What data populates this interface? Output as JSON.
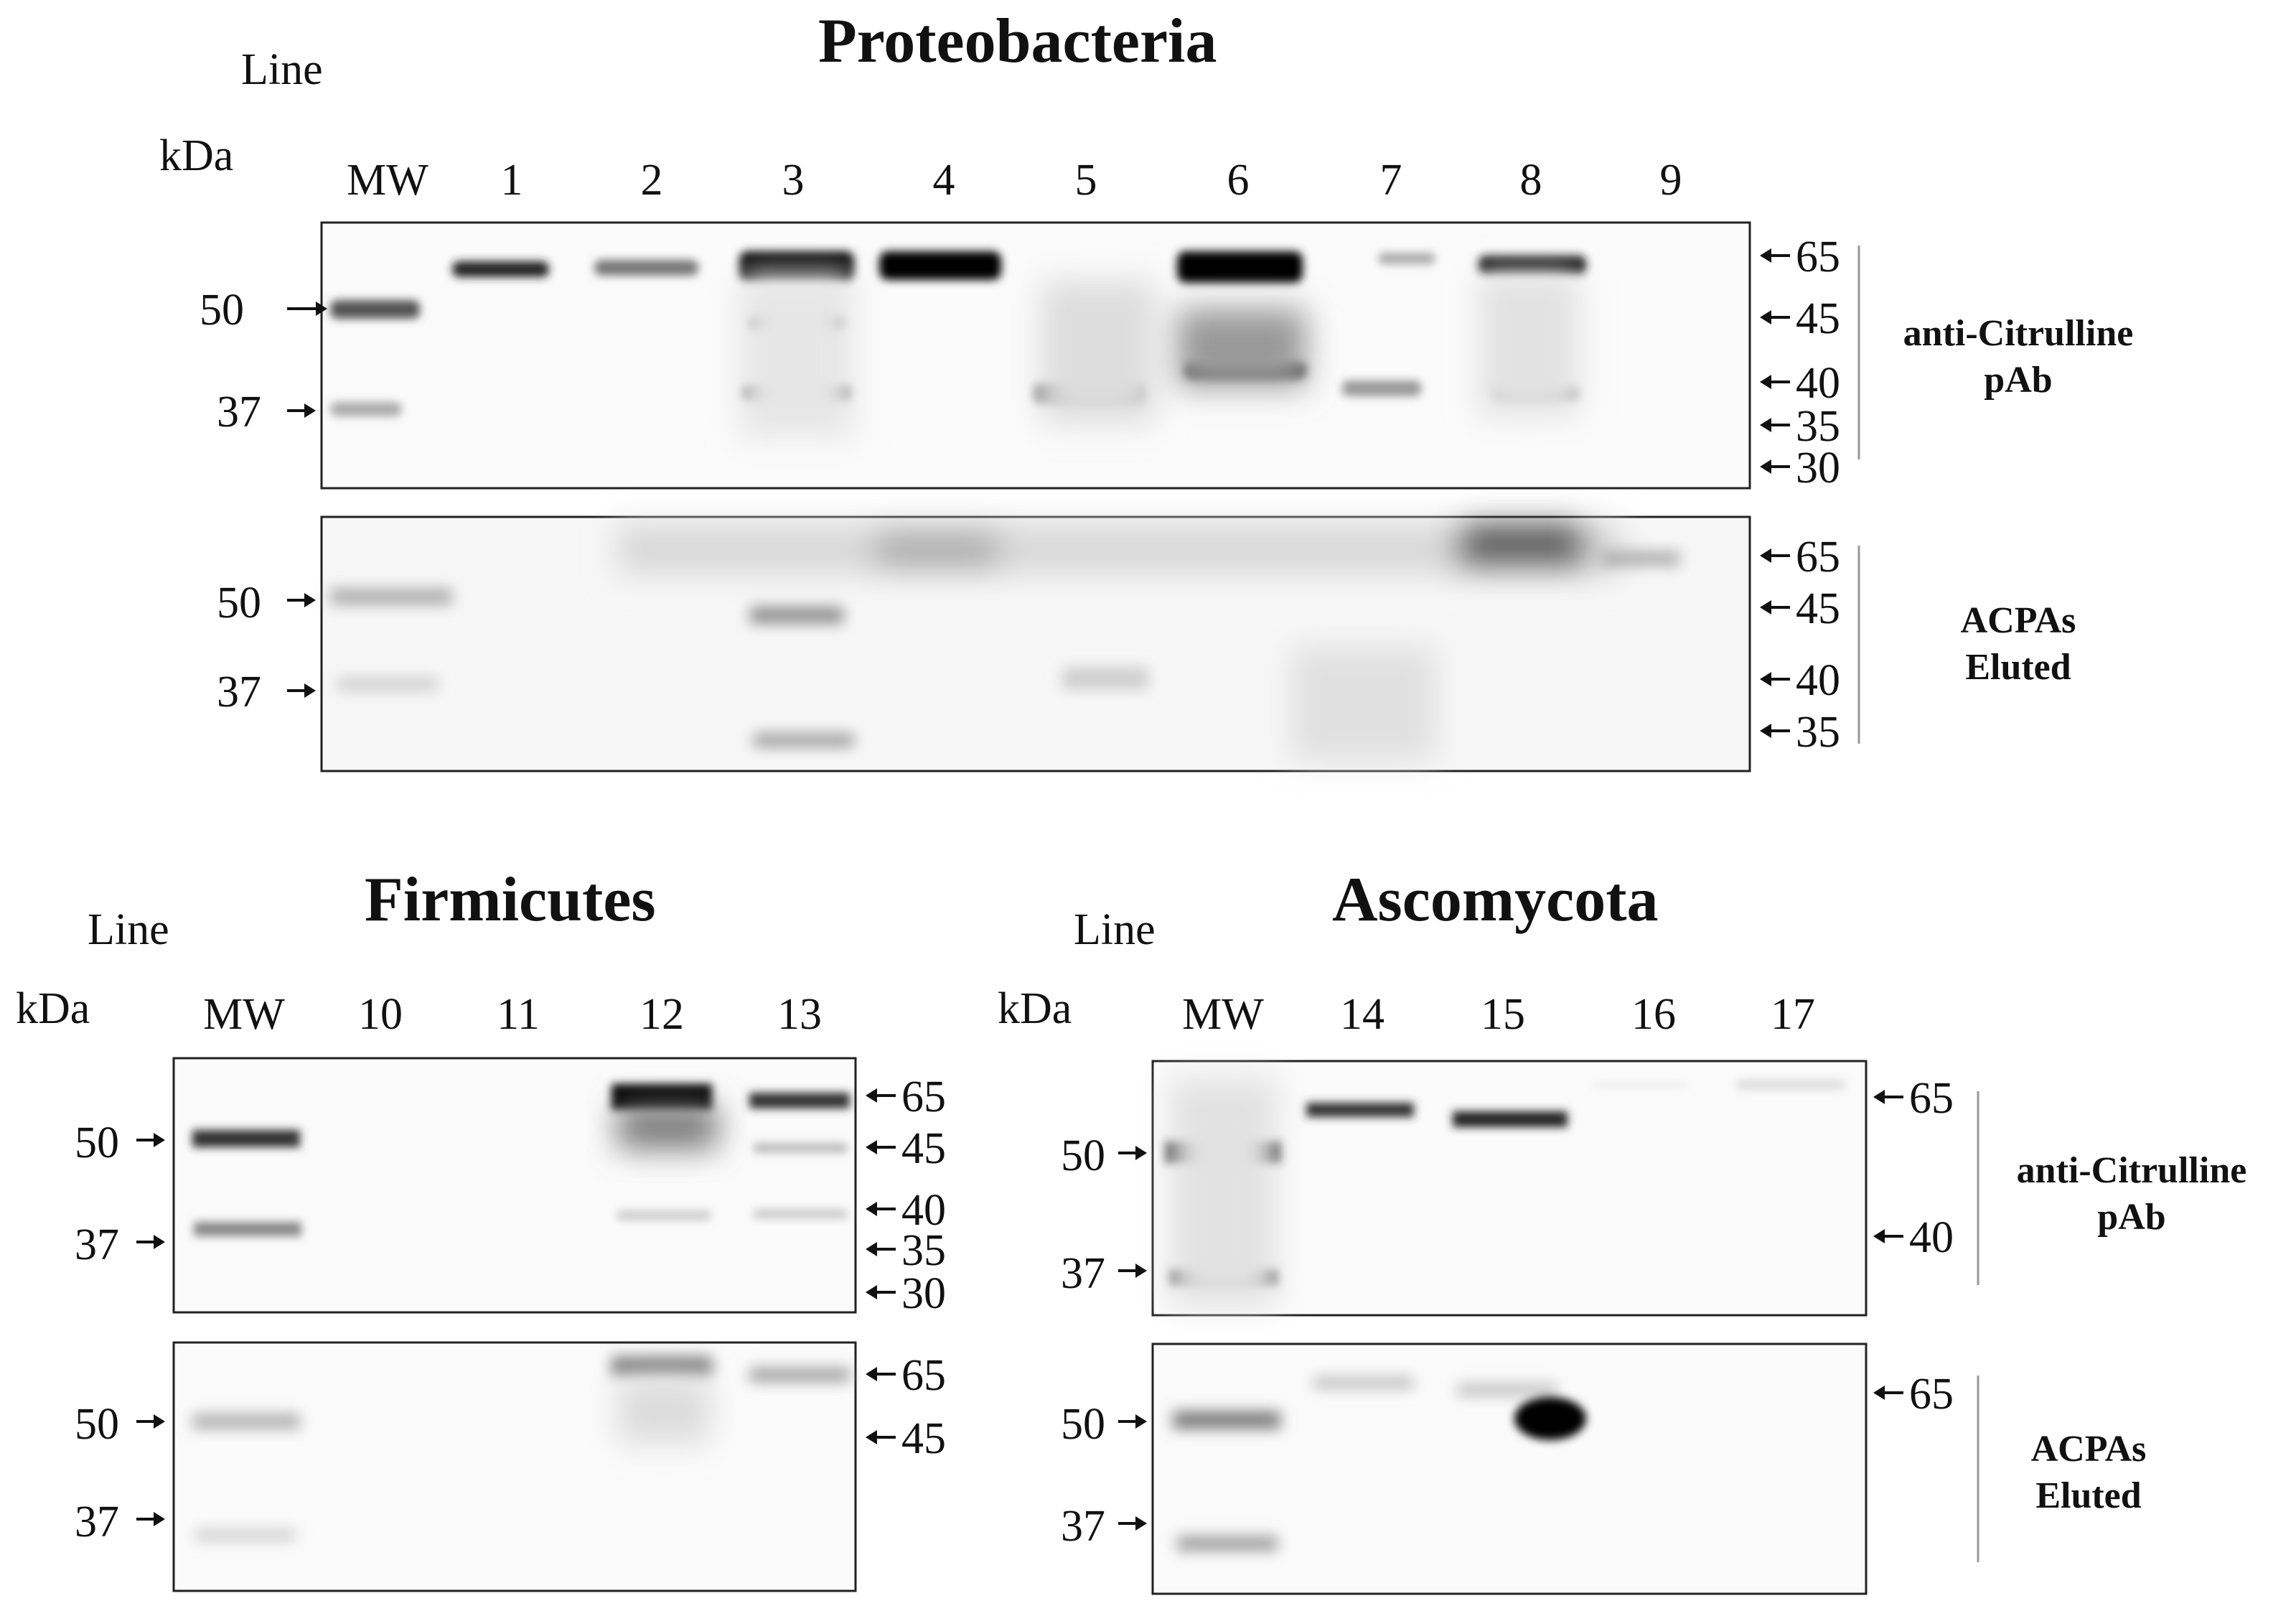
{
  "figure": {
    "proteobacteria": {
      "title": "Proteobacteria",
      "line_label": "Line",
      "kda_label": "kDa",
      "lanes": [
        "MW",
        "1",
        "2",
        "3",
        "4",
        "5",
        "6",
        "7",
        "8",
        "9"
      ],
      "top_panel": {
        "label_line1": "anti-Citrulline",
        "label_line2": "pAb",
        "left_markers": [
          "50",
          "37"
        ],
        "right_markers": [
          "65",
          "45",
          "40",
          "35",
          "30"
        ]
      },
      "bottom_panel": {
        "label_line1": "ACPAs",
        "label_line2": "Eluted",
        "left_markers": [
          "50",
          "37"
        ],
        "right_markers": [
          "65",
          "45",
          "40",
          "35"
        ]
      }
    },
    "firmicutes": {
      "title": "Firmicutes",
      "line_label": "Line",
      "kda_label": "kDa",
      "lanes": [
        "MW",
        "10",
        "11",
        "12",
        "13"
      ],
      "top_panel": {
        "left_markers": [
          "50",
          "37"
        ],
        "right_markers": [
          "65",
          "45",
          "40",
          "35",
          "30"
        ]
      },
      "bottom_panel": {
        "left_markers": [
          "50",
          "37"
        ],
        "right_markers": [
          "65",
          "45"
        ]
      }
    },
    "ascomycota": {
      "title": "Ascomycota",
      "line_label": "Line",
      "kda_label": "kDa",
      "lanes": [
        "MW",
        "14",
        "15",
        "16",
        "17"
      ],
      "top_panel": {
        "label_line1": "anti-Citrulline",
        "label_line2": "pAb",
        "left_markers": [
          "50",
          "37"
        ],
        "right_markers": [
          "65",
          "40"
        ]
      },
      "bottom_panel": {
        "label_line1": "ACPAs",
        "label_line2": "Eluted",
        "left_markers": [
          "50",
          "37"
        ],
        "right_markers": [
          "65"
        ]
      }
    }
  }
}
